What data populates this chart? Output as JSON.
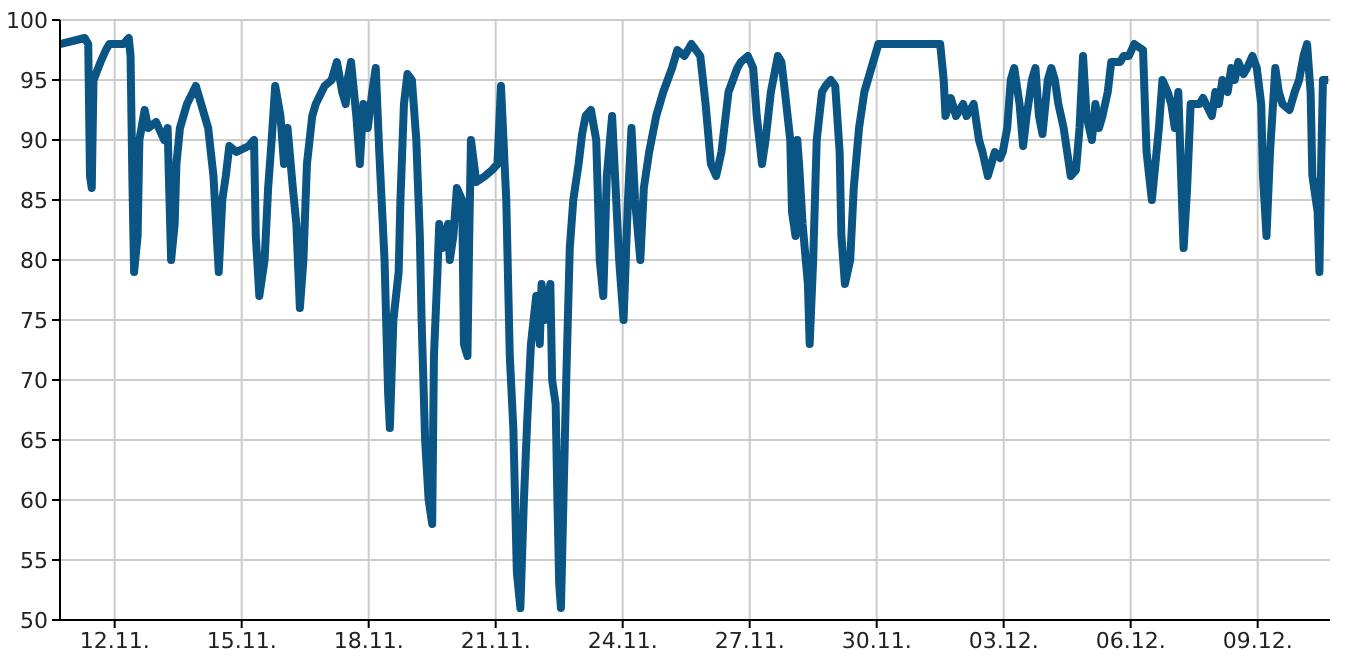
{
  "chart_data": {
    "type": "line",
    "xlim": [
      "--11-10T17:00",
      "--12-10T17:00"
    ],
    "xticks": [
      {
        "value": "--11-12",
        "label": "12.11."
      },
      {
        "value": "--11-15",
        "label": "15.11."
      },
      {
        "value": "--11-18",
        "label": "18.11."
      },
      {
        "value": "--11-21",
        "label": "21.11."
      },
      {
        "value": "--11-24",
        "label": "24.11."
      },
      {
        "value": "--11-27",
        "label": "27.11."
      },
      {
        "value": "--11-30",
        "label": "30.11."
      },
      {
        "value": "--12-03",
        "label": "03.12."
      },
      {
        "value": "--12-06",
        "label": "06.12."
      },
      {
        "value": "--12-09",
        "label": "09.12."
      }
    ],
    "ylim": [
      50,
      100
    ],
    "yticks": [
      50,
      55,
      60,
      65,
      70,
      75,
      80,
      85,
      90,
      95,
      100
    ],
    "grid": true,
    "marker": "none",
    "line_style": "solid",
    "series": [
      {
        "color": "#0b5584",
        "x": [
          "--11-10T17:00",
          "--11-11T07:00",
          "--11-11T09:00",
          "--11-11T10:00",
          "--11-11T11:00",
          "--11-11T12:00",
          "--11-11T16:00",
          "--11-11T19:00",
          "--11-11T21:00",
          "--11-12T05:00",
          "--11-12T08:00",
          "--11-12T09:00",
          "--11-12T10:00",
          "--11-12T11:00",
          "--11-12T13:00",
          "--11-12T14:00",
          "--11-12T17:00",
          "--11-12T19:00",
          "--11-12T23:30",
          "--11-13T04:00",
          "--11-13T06:00",
          "--11-13T08:00",
          "--11-13T10:00",
          "--11-13T11:00",
          "--11-13T13:00",
          "--11-13T17:00",
          "--11-13T22:00",
          "--11-14T01:00",
          "--11-14T05:00",
          "--11-14T08:00",
          "--11-14T11:00",
          "--11-14T13:00",
          "--11-14T15:00",
          "--11-14T17:00",
          "--11-14T21:00",
          "--11-15T04:00",
          "--11-15T07:00",
          "--11-15T08:00",
          "--11-15T10:00",
          "--11-15T13:00",
          "--11-15T15:00",
          "--11-15T17:00",
          "--11-15T19:00",
          "--11-15T22:00",
          "--11-16T00:00",
          "--11-16T02:00",
          "--11-16T05:00",
          "--11-16T07:00",
          "--11-16T09:00",
          "--11-16T11:00",
          "--11-16T13:00",
          "--11-16T16:00",
          "--11-16T18:00",
          "--11-16T23:00",
          "--11-17T03:00",
          "--11-17T06:00",
          "--11-17T09:00",
          "--11-17T11:00",
          "--11-17T12:00",
          "--11-17T14:00",
          "--11-17T17:00",
          "--11-17T19:00",
          "--11-17T21:00",
          "--11-17T23:30",
          "--11-18T02:00",
          "--11-18T04:00",
          "--11-18T06:00",
          "--11-18T09:00",
          "--11-18T11:00",
          "--11-18T12:00",
          "--11-18T14:00",
          "--11-18T17:00",
          "--11-18T18:00",
          "--11-18T20:00",
          "--11-18T22:00",
          "--11-19T00:30",
          "--11-19T03:00",
          "--11-19T05:00",
          "--11-19T06:00",
          "--11-19T08:00",
          "--11-19T10:00",
          "--11-19T12:00",
          "--11-19T13:00",
          "--11-19T15:00",
          "--11-19T16:00",
          "--11-19T18:00",
          "--11-19T21:00",
          "--11-19T22:00",
          "--11-20T00:00",
          "--11-20T02:00",
          "--11-20T05:00",
          "--11-20T06:00",
          "--11-20T08:00",
          "--11-20T09:00",
          "--11-20T10:00",
          "--11-20T13:00",
          "--11-20T18:00",
          "--11-20T22:00",
          "--11-21T01:00",
          "--11-21T03:00",
          "--11-21T06:00",
          "--11-21T08:00",
          "--11-21T10:00",
          "--11-21T12:00",
          "--11-21T14:00",
          "--11-21T16:00",
          "--11-21T18:00",
          "--11-21T20:00",
          "--11-21T23:00",
          "--11-22T01:00",
          "--11-22T02:00",
          "--11-22T04:00",
          "--11-22T07:00",
          "--11-22T08:00",
          "--11-22T10:00",
          "--11-22T11:00",
          "--11-22T12:00",
          "--11-22T13:00",
          "--11-22T16:00",
          "--11-22T18:00",
          "--11-22T20:00",
          "--11-22T23:00",
          "--11-23T01:00",
          "--11-23T03:00",
          "--11-23T06:00",
          "--11-23T09:00",
          "--11-23T11:00",
          "--11-23T13:00",
          "--11-23T15:00",
          "--11-23T18:00",
          "--11-23T20:00",
          "--11-23T22:00",
          "--11-24T00:30",
          "--11-24T03:00",
          "--11-24T05:00",
          "--11-24T07:00",
          "--11-24T10:00",
          "--11-24T12:00",
          "--11-24T15:00",
          "--11-24T19:00",
          "--11-24T23:00",
          "--11-25T04:00",
          "--11-25T07:00",
          "--11-25T11:00",
          "--11-25T15:00",
          "--11-25T20:00",
          "--11-25T23:00",
          "--11-26T02:00",
          "--11-26T05:00",
          "--11-26T08:00",
          "--11-26T12:00",
          "--11-26T17:00",
          "--11-26T19:00",
          "--11-26T23:00",
          "--11-27T02:00",
          "--11-27T04:00",
          "--11-27T07:00",
          "--11-27T09:00",
          "--11-27T12:00",
          "--11-27T16:00",
          "--11-27T18:00",
          "--11-27T20:00",
          "--11-27T23:00",
          "--11-28T00:00",
          "--11-28T02:00",
          "--11-28T03:00",
          "--11-28T04:00",
          "--11-28T06:00",
          "--11-28T09:00",
          "--11-28T10:00",
          "--11-28T12:00",
          "--11-28T14:00",
          "--11-28T17:00",
          "--11-28T19:00",
          "--11-28T22:00",
          "--11-29T00:30",
          "--11-29T03:00",
          "--11-29T04:00",
          "--11-29T06:00",
          "--11-29T09:00",
          "--11-29T11:00",
          "--11-29T14:00",
          "--11-29T17:00",
          "--11-29T21:00",
          "--11-30T01:00",
          "--11-30T08:00",
          "--12-01T12:00",
          "--12-01T14:00",
          "--12-01T15:00",
          "--12-01T18:00",
          "--12-01T21:00",
          "--12-02T01:00",
          "--12-02T03:00",
          "--12-02T07:00",
          "--12-02T10:00",
          "--12-02T12:00",
          "--12-02T15:00",
          "--12-02T17:00",
          "--12-02T19:00",
          "--12-02T22:00",
          "--12-02T23:30",
          "--12-03T02:00",
          "--12-03T04:00",
          "--12-03T06:00",
          "--12-03T09:00",
          "--12-03T11:00",
          "--12-03T13:00",
          "--12-03T16:00",
          "--12-03T18:00",
          "--12-03T20:00",
          "--12-03T22:00",
          "--12-04T01:00",
          "--12-04T03:00",
          "--12-04T05:00",
          "--12-04T07:00",
          "--12-04T10:00",
          "--12-04T12:00",
          "--12-04T14:00",
          "--12-04T17:00",
          "--12-04T19:00",
          "--12-04T21:00",
          "--12-04T23:00",
          "--12-05T02:00",
          "--12-05T04:00",
          "--12-05T06:00",
          "--12-05T08:00",
          "--12-05T11:00",
          "--12-05T13:00",
          "--12-05T18:00",
          "--12-05T20:00",
          "--12-05T23:00",
          "--12-06T02:00",
          "--12-06T07:00",
          "--12-06T09:00",
          "--12-06T12:00",
          "--12-06T14:00",
          "--12-06T16:00",
          "--12-06T18:00",
          "--12-06T21:00",
          "--12-06T23:00",
          "--12-07T01:00",
          "--12-07T03:00",
          "--12-07T06:00",
          "--12-07T08:00",
          "--12-07T10:00",
          "--12-07T15:00",
          "--12-07T17:00",
          "--12-07T22:00",
          "--12-08T00:00",
          "--12-08T02:00",
          "--12-08T04:00",
          "--12-08T07:00",
          "--12-08T09:00",
          "--12-08T11:00",
          "--12-08T13:00",
          "--12-08T16:00",
          "--12-08T18:00",
          "--12-08T21:00",
          "--12-08T23:30",
          "--12-09T02:00",
          "--12-09T03:00",
          "--12-09T05:00",
          "--12-09T07:00",
          "--12-09T10:00",
          "--12-09T12:00",
          "--12-09T14:00",
          "--12-09T18:00",
          "--12-09T21:00",
          "--12-09T23:30",
          "--12-10T02:00",
          "--12-10T04:00",
          "--12-10T06:00",
          "--12-10T07:00",
          "--12-10T10:00",
          "--12-10T11:00",
          "--12-10T12:00",
          "--12-10T13:00",
          "--12-10T16:00"
        ],
        "values": [
          98,
          98.5,
          98,
          87,
          86,
          95,
          96.5,
          97.5,
          98,
          98,
          98.5,
          97,
          87,
          79,
          82,
          90,
          92.5,
          91,
          91.5,
          90,
          91,
          80,
          83,
          88,
          91,
          93,
          94.5,
          93,
          91,
          87,
          79,
          85,
          87,
          89.5,
          89,
          89.5,
          90,
          82,
          77,
          80,
          86,
          90,
          94.5,
          92,
          88,
          91,
          86,
          83,
          76,
          80,
          88,
          92,
          93,
          94.5,
          95,
          96.5,
          94,
          93,
          95,
          96.5,
          92,
          88,
          93,
          91,
          94,
          96,
          89,
          80,
          69,
          66,
          75,
          79,
          85,
          93,
          95.5,
          95,
          90,
          82,
          75,
          65,
          60,
          58,
          72,
          79,
          83,
          81,
          83,
          80,
          82,
          86,
          85,
          73,
          72,
          82,
          90,
          86.5,
          87,
          87.5,
          88,
          94.5,
          85,
          72,
          66,
          54,
          51,
          60,
          67,
          73,
          77,
          73,
          78,
          75,
          78,
          70,
          68,
          60,
          53,
          51,
          70,
          81,
          85,
          88,
          90.5,
          92,
          92.5,
          90,
          80,
          77,
          87,
          92,
          86,
          80,
          75,
          85,
          91,
          85,
          80,
          86,
          89,
          92,
          94,
          96,
          97.5,
          97,
          98,
          97,
          93,
          88,
          87,
          89,
          94,
          96,
          96.5,
          97,
          96,
          92,
          88,
          90,
          94,
          97,
          96.5,
          94,
          90,
          84,
          82,
          90,
          88,
          83,
          78,
          73,
          80,
          90,
          94,
          94.5,
          95,
          94.5,
          89,
          82,
          78,
          80,
          86,
          91,
          94,
          96,
          98,
          98,
          98,
          95,
          92,
          93.5,
          92,
          93,
          92,
          93,
          90,
          89,
          87,
          88,
          89,
          88.5,
          89,
          91,
          95,
          96,
          93,
          89.5,
          92,
          95,
          96,
          92,
          90.5,
          95,
          96,
          95,
          93,
          91,
          89,
          87,
          87.5,
          91,
          97,
          92,
          90,
          93,
          91,
          92,
          94,
          96.5,
          96.5,
          97,
          97,
          98,
          97.5,
          89,
          85,
          88,
          91,
          95,
          94,
          93,
          91,
          94,
          81,
          86,
          93,
          93,
          93.5,
          92,
          94,
          93,
          95,
          94,
          96,
          95,
          96.5,
          95.5,
          96,
          97,
          96,
          93,
          87,
          82,
          89,
          96,
          94,
          93,
          92.5,
          94,
          95,
          97,
          98,
          94,
          87,
          84,
          79,
          88,
          95,
          95
        ]
      }
    ]
  }
}
